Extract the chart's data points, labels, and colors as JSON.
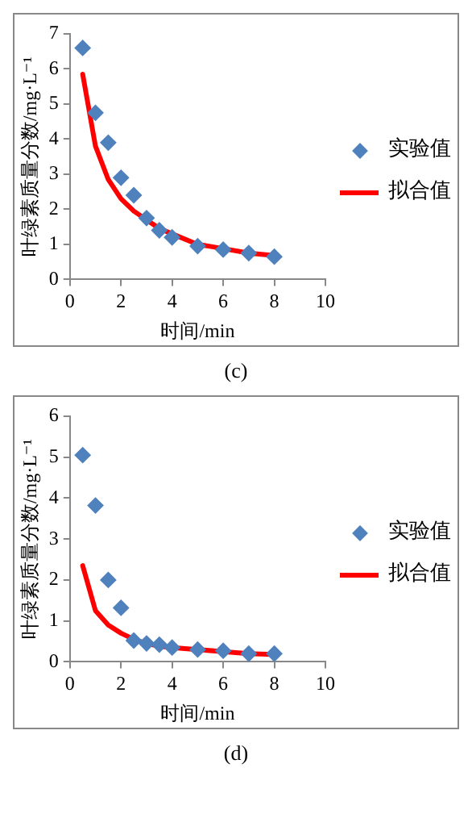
{
  "chart_data": [
    {
      "type": "scatter",
      "xlabel": "时间/min",
      "ylabel": "叶绿素质量分数/mg·L⁻¹",
      "annotations": [
        "(c)"
      ],
      "xlim": [
        0,
        10
      ],
      "xticks": [
        0,
        2,
        4,
        6,
        8,
        10
      ],
      "ylim": [
        0,
        7
      ],
      "yticks": [
        0,
        1,
        2,
        3,
        4,
        5,
        6,
        7
      ],
      "grid": false,
      "legend": "right",
      "x": [
        0.5,
        1,
        1.5,
        2,
        2.5,
        3,
        3.5,
        4,
        5,
        6,
        7,
        8
      ],
      "series": [
        {
          "name": "实验值",
          "type": "scatter",
          "marker": "diamond",
          "color": "#4f81bd",
          "values": [
            6.6,
            4.75,
            3.9,
            2.9,
            2.4,
            1.75,
            1.4,
            1.2,
            0.95,
            0.85,
            0.75,
            0.65
          ]
        },
        {
          "name": "拟合值",
          "type": "line",
          "marker": "none",
          "line_style": "solid",
          "color": "#ff0000",
          "values": [
            5.85,
            3.8,
            2.85,
            2.3,
            1.95,
            1.7,
            1.45,
            1.3,
            1.0,
            0.88,
            0.75,
            0.68
          ]
        }
      ]
    },
    {
      "type": "scatter",
      "xlabel": "时间/min",
      "ylabel": "叶绿素质量分数/mg·L⁻¹",
      "annotations": [
        "(d)"
      ],
      "xlim": [
        0,
        10
      ],
      "xticks": [
        0,
        2,
        4,
        6,
        8,
        10
      ],
      "ylim": [
        0,
        6
      ],
      "yticks": [
        0,
        1,
        2,
        3,
        4,
        5,
        6
      ],
      "grid": false,
      "legend": "right",
      "x": [
        0.5,
        1,
        1.5,
        2,
        2.5,
        3,
        3.5,
        4,
        5,
        6,
        7,
        8
      ],
      "series": [
        {
          "name": "实验值",
          "type": "scatter",
          "marker": "diamond",
          "color": "#4f81bd",
          "values": [
            5.05,
            3.82,
            2.0,
            1.32,
            0.52,
            0.45,
            0.42,
            0.35,
            0.3,
            0.27,
            0.2,
            0.2
          ]
        },
        {
          "name": "拟合值",
          "type": "line",
          "marker": "none",
          "line_style": "solid",
          "color": "#ff0000",
          "values": [
            2.35,
            1.25,
            0.9,
            0.7,
            0.55,
            0.45,
            0.38,
            0.35,
            0.3,
            0.25,
            0.2,
            0.18
          ]
        }
      ]
    }
  ]
}
